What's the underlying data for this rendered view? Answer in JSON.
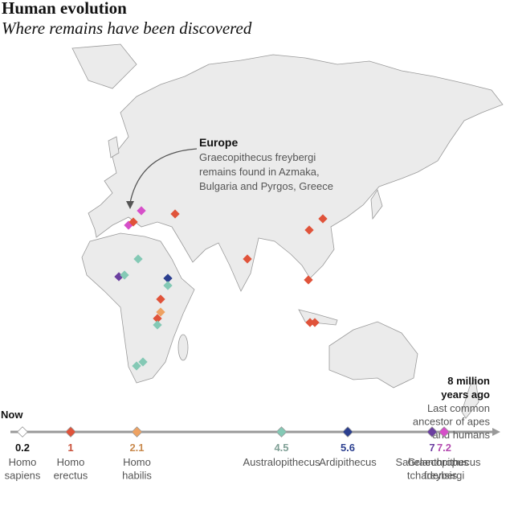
{
  "title": "Human evolution",
  "subtitle": "Where remains have been discovered",
  "annotation": {
    "heading": "Europe",
    "lines": [
      "Graecopithecus freybergi",
      "remains found in Azmaka,",
      "Bulgaria and Pyrgos, Greece"
    ]
  },
  "timeline": {
    "start": {
      "value": 0,
      "label": "Now"
    },
    "end": {
      "value": 8,
      "label": [
        "8 million",
        "years ago"
      ]
    },
    "end_note": [
      "Last common",
      "ancestor of apes",
      "and humans"
    ],
    "species": [
      {
        "value": 0.2,
        "name": [
          "Homo",
          "sapiens"
        ],
        "color": "#ffffff",
        "label_color": "#111111"
      },
      {
        "value": 1,
        "name": [
          "Homo",
          "erectus"
        ],
        "color": "#e0533a",
        "label_color": "#c9503a"
      },
      {
        "value": 2.1,
        "name": [
          "Homo",
          "habilis"
        ],
        "color": "#eea262",
        "label_color": "#c98a4e"
      },
      {
        "value": 4.5,
        "name": [
          "Australopithecus"
        ],
        "color": "#84c9b5",
        "label_color": "#7f9f95"
      },
      {
        "value": 5.6,
        "name": [
          "Ardipithecus"
        ],
        "color": "#2b3f8f",
        "label_color": "#2b3f8f"
      },
      {
        "value": 7,
        "name": [
          "Sahelanthropus",
          "tchadensis"
        ],
        "color": "#6b3fa0",
        "label_color": "#6b3fa0"
      },
      {
        "value": 7.2,
        "name": [
          "Graecopithecus",
          "freybergi"
        ],
        "color": "#d64fc9",
        "label_color": "#b44bb0"
      }
    ]
  }
}
